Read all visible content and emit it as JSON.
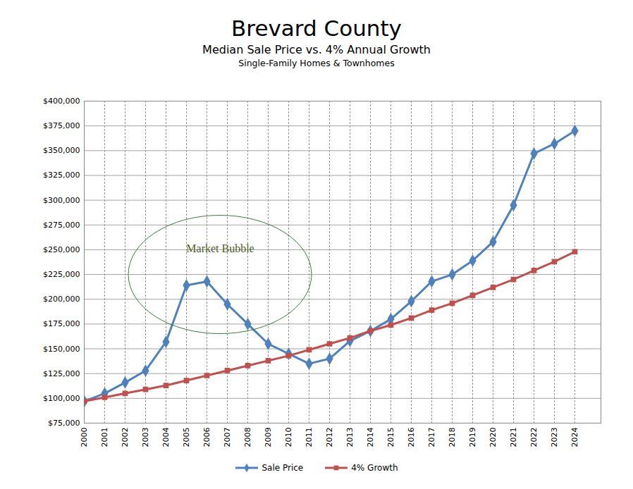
{
  "chart_data": {
    "type": "line",
    "title": "Brevard County",
    "subtitle": [
      "Median Sale Price vs. 4% Annual Growth",
      "Single-Family Homes & Townhomes"
    ],
    "categories": [
      "2000",
      "2001",
      "2002",
      "2003",
      "2004",
      "2005",
      "2006",
      "2007",
      "2008",
      "2009",
      "2010",
      "2011",
      "2012",
      "2013",
      "2014",
      "2015",
      "2016",
      "2017",
      "2018",
      "2019",
      "2020",
      "2021",
      "2022",
      "2023",
      "2024"
    ],
    "series": [
      {
        "name": "Sale Price",
        "color": "#4f81bd",
        "marker": "diamond",
        "values": [
          97000,
          105000,
          116000,
          128000,
          157000,
          214000,
          218000,
          195000,
          175000,
          155000,
          145000,
          135000,
          140000,
          158000,
          168000,
          180000,
          198000,
          218000,
          225000,
          239000,
          258000,
          295000,
          347000,
          357000,
          370000
        ]
      },
      {
        "name": "4% Growth",
        "color": "#c0504d",
        "marker": "square",
        "values": [
          97000,
          101000,
          105000,
          109000,
          113000,
          118000,
          123000,
          128000,
          133000,
          138000,
          143000,
          149000,
          155000,
          161000,
          168000,
          174000,
          181000,
          189000,
          196000,
          204000,
          212000,
          220000,
          229000,
          238000,
          248000
        ]
      }
    ],
    "ylim": [
      75000,
      400000
    ],
    "yticks": [
      {
        "value": 75000,
        "label": "$75,000"
      },
      {
        "value": 100000,
        "label": "$100,000"
      },
      {
        "value": 125000,
        "label": "$125,000"
      },
      {
        "value": 150000,
        "label": "$150,000"
      },
      {
        "value": 175000,
        "label": "$175,000"
      },
      {
        "value": 200000,
        "label": "$200,000"
      },
      {
        "value": 225000,
        "label": "$225,000"
      },
      {
        "value": 250000,
        "label": "$250,000"
      },
      {
        "value": 275000,
        "label": "$275,000"
      },
      {
        "value": 300000,
        "label": "$300,000"
      },
      {
        "value": 325000,
        "label": "$325,000"
      },
      {
        "value": 350000,
        "label": "$350,000"
      },
      {
        "value": 375000,
        "label": "$375,000"
      },
      {
        "value": 400000,
        "label": "$400,000"
      }
    ],
    "grid": true,
    "legend": "bottom",
    "annotations": [
      {
        "text": "Market Bubble",
        "x": "2007",
        "y": 251000
      }
    ]
  }
}
